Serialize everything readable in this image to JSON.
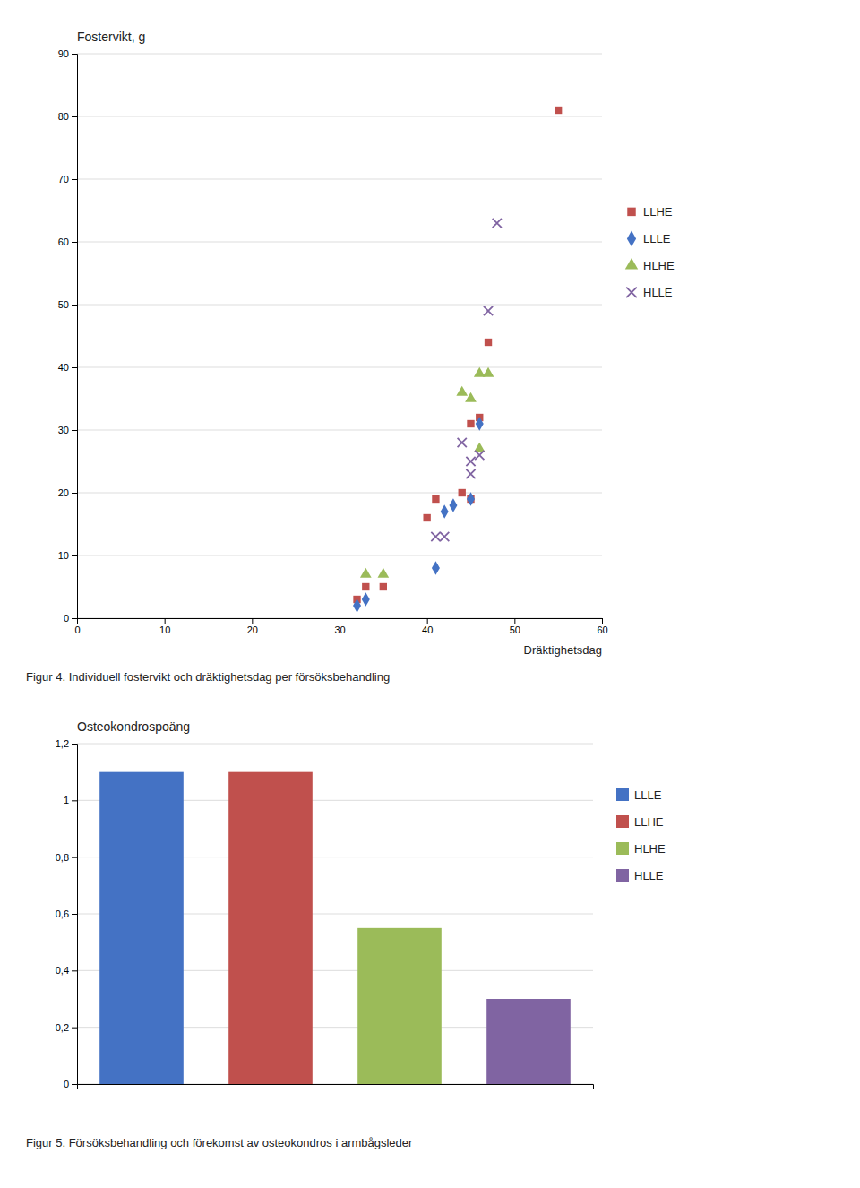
{
  "chart_data": [
    {
      "type": "scatter",
      "title": "Fostervikt, g",
      "xlabel": "Dräktighetsdag",
      "caption": "Figur 4. Individuell fostervikt och dräktighetsdag per försöksbehandling",
      "series": [
        {
          "name": "LLHE",
          "color": "#C0504D",
          "marker": "square",
          "x": [
            32,
            33,
            35,
            40,
            41,
            44,
            45,
            45,
            46,
            47,
            55
          ],
          "values": [
            3,
            5,
            5,
            16,
            19,
            20,
            19,
            31,
            32,
            44,
            81
          ]
        },
        {
          "name": "LLLE",
          "color": "#4472C4",
          "marker": "diamond",
          "x": [
            32,
            33,
            41,
            42,
            43,
            45,
            46
          ],
          "values": [
            2,
            3,
            8,
            17,
            18,
            19,
            31
          ]
        },
        {
          "name": "HLHE",
          "color": "#9BBB59",
          "marker": "triangle",
          "x": [
            33,
            35,
            44,
            45,
            46,
            46,
            47
          ],
          "values": [
            7,
            7,
            36,
            35,
            27,
            39,
            39
          ]
        },
        {
          "name": "HLLE",
          "color": "#8064A2",
          "marker": "x",
          "x": [
            41,
            42,
            44,
            45,
            45,
            46,
            47,
            48
          ],
          "values": [
            13,
            13,
            28,
            23,
            25,
            26,
            49,
            63
          ]
        }
      ],
      "xlim": [
        0,
        60
      ],
      "xticks": [
        0,
        10,
        20,
        30,
        40,
        50,
        60
      ],
      "ylim": [
        0,
        90
      ],
      "yticks": [
        0,
        10,
        20,
        30,
        40,
        50,
        60,
        70,
        80,
        90
      ],
      "grid": "y",
      "legend": "right"
    },
    {
      "type": "bar",
      "title": "Osteokondrospoäng",
      "caption": "Figur 5. Försöksbehandling och förekomst av osteokondros i armbågsleder",
      "categories": [
        "LLLE",
        "LLHE",
        "HLHE",
        "HLLE"
      ],
      "values": [
        1.1,
        1.1,
        0.55,
        0.3
      ],
      "colors": [
        "#4472C4",
        "#C0504D",
        "#9BBB59",
        "#8064A2"
      ],
      "ylim": [
        0,
        1.2
      ],
      "yticks": [
        0,
        {
          "value": 0.2,
          "label": "0,2"
        },
        {
          "value": 0.4,
          "label": "0,4"
        },
        {
          "value": 0.6,
          "label": "0,6"
        },
        {
          "value": 0.8,
          "label": "0,8"
        },
        1,
        {
          "value": 1.2,
          "label": "1,2"
        }
      ],
      "grid": "y",
      "legend": "right",
      "tick_labels": "y"
    }
  ]
}
